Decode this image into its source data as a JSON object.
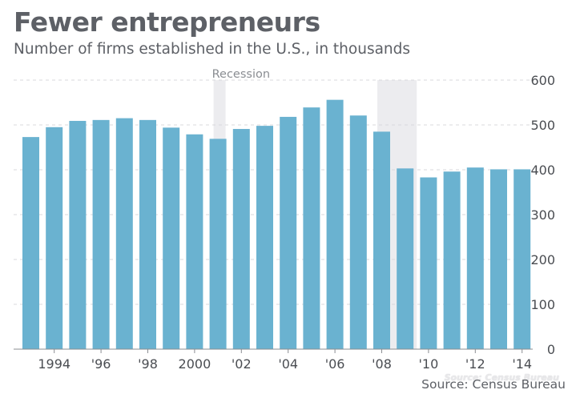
{
  "title": "Fewer entrepreneurs",
  "subtitle": "Number of firms established in the U.S., in thousands",
  "source": "Source: Census Bureau",
  "source_ghost": "Source: Census Bureau",
  "colors": {
    "bar": "#6ab2d0",
    "recession": "#ececef",
    "grid": "#d8d8dc",
    "text": "#5d6066",
    "axis": "#4a4d52"
  },
  "chart_data": {
    "type": "bar",
    "title": "Fewer entrepreneurs",
    "subtitle": "Number of firms established in the U.S., in thousands",
    "xlabel": "",
    "ylabel": "",
    "ylim": [
      0,
      600
    ],
    "yticks": [
      0,
      100,
      200,
      300,
      400,
      500,
      600
    ],
    "y_axis_side": "right",
    "grid": true,
    "years": [
      1993,
      1994,
      1995,
      1996,
      1997,
      1998,
      1999,
      2000,
      2001,
      2002,
      2003,
      2004,
      2005,
      2006,
      2007,
      2008,
      2009,
      2010,
      2011,
      2012,
      2013,
      2014
    ],
    "values": [
      473,
      495,
      509,
      511,
      515,
      511,
      494,
      479,
      469,
      491,
      498,
      518,
      539,
      556,
      521,
      485,
      403,
      383,
      396,
      405,
      401,
      401
    ],
    "xtick_labels": [
      {
        "year": 1994,
        "label": "1994"
      },
      {
        "year": 1996,
        "label": "'96"
      },
      {
        "year": 1998,
        "label": "'98"
      },
      {
        "year": 2000,
        "label": "2000"
      },
      {
        "year": 2002,
        "label": "'02"
      },
      {
        "year": 2004,
        "label": "'04"
      },
      {
        "year": 2006,
        "label": "'06"
      },
      {
        "year": 2008,
        "label": "'08"
      },
      {
        "year": 2010,
        "label": "'10"
      },
      {
        "year": 2012,
        "label": "'12"
      },
      {
        "year": 2014,
        "label": "'14"
      }
    ],
    "recessions": [
      {
        "start_year": 2001,
        "end_year": 2001,
        "label": "Recession"
      },
      {
        "start_year": 2008,
        "end_year": 2009,
        "label": ""
      }
    ]
  }
}
